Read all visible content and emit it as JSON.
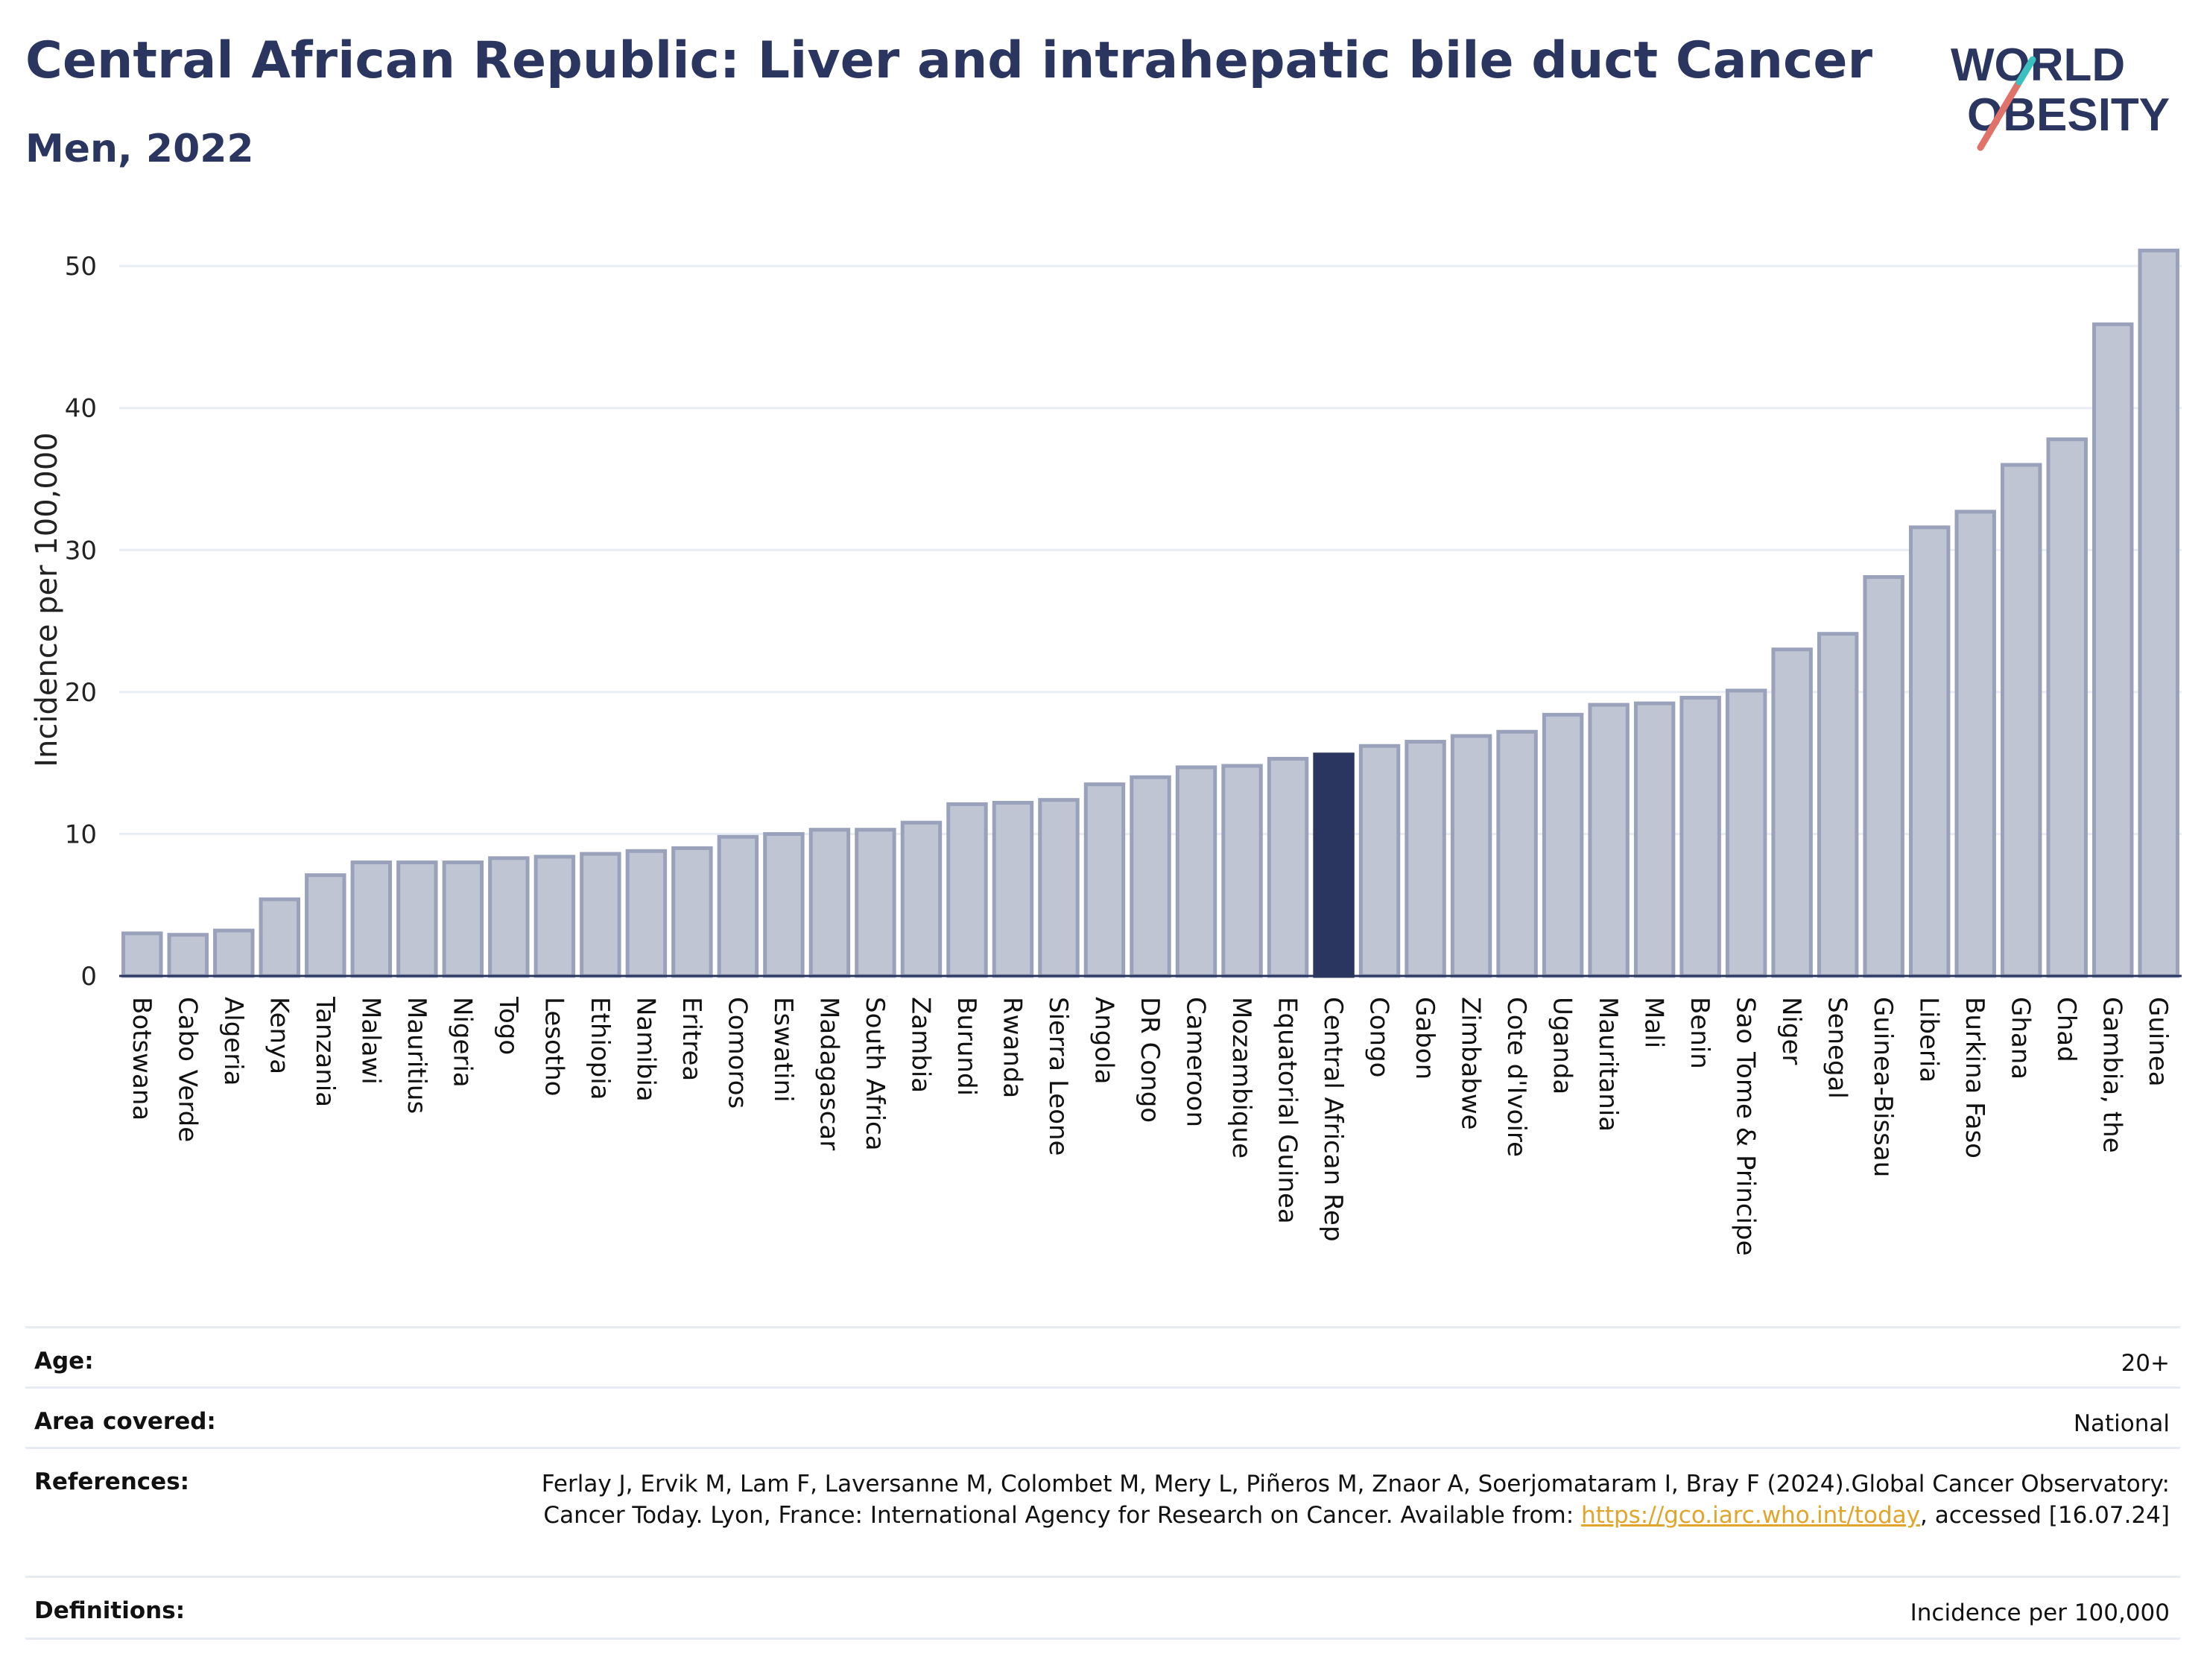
{
  "header": {
    "title": "Central African Republic: Liver and intrahepatic bile duct Cancer",
    "subtitle": "Men, 2022"
  },
  "logo": {
    "line1": "WORLD",
    "line2": "OBESITY",
    "icon": "slash-icon",
    "colors": [
      "#2a3560",
      "#e0726a",
      "#3bbfbf"
    ]
  },
  "chart_data": {
    "type": "bar",
    "ylabel": "Incidence per 100,000",
    "xlabel": "",
    "ylim": [
      0,
      53
    ],
    "yticks": [
      0,
      10,
      20,
      30,
      40,
      50
    ],
    "grid": true,
    "highlight": "Central African Rep",
    "colors": {
      "bar": "#c0c5d3",
      "bar_edge": "#9aa2bb",
      "highlight": "#2a3560"
    },
    "categories": [
      "Botswana",
      "Cabo Verde",
      "Algeria",
      "Kenya",
      "Tanzania",
      "Malawi",
      "Mauritius",
      "Nigeria",
      "Togo",
      "Lesotho",
      "Ethiopia",
      "Namibia",
      "Eritrea",
      "Comoros",
      "Eswatini",
      "Madagascar",
      "South Africa",
      "Zambia",
      "Burundi",
      "Rwanda",
      "Sierra Leone",
      "Angola",
      "DR Congo",
      "Cameroon",
      "Mozambique",
      "Equatorial Guinea",
      "Central African Rep",
      "Congo",
      "Gabon",
      "Zimbabwe",
      "Cote d'Ivoire",
      "Uganda",
      "Mauritania",
      "Mali",
      "Benin",
      "Sao Tome & Principe",
      "Niger",
      "Senegal",
      "Guinea-Bissau",
      "Liberia",
      "Burkina Faso",
      "Ghana",
      "Chad",
      "Gambia, the",
      "Guinea"
    ],
    "values": [
      3.0,
      2.9,
      3.2,
      5.4,
      7.1,
      8.0,
      8.0,
      8.0,
      8.3,
      8.4,
      8.6,
      8.8,
      9.0,
      9.8,
      10.0,
      10.3,
      10.3,
      10.8,
      12.1,
      12.2,
      12.4,
      13.5,
      14.0,
      14.7,
      14.8,
      15.3,
      15.6,
      16.2,
      16.5,
      16.9,
      17.2,
      18.4,
      19.1,
      19.2,
      19.6,
      20.1,
      23.0,
      24.1,
      28.1,
      31.6,
      32.7,
      36.0,
      37.8,
      45.9,
      51.1
    ]
  },
  "meta": {
    "age": {
      "label": "Age:",
      "value": "20+"
    },
    "area": {
      "label": "Area covered:",
      "value": "National"
    },
    "references": {
      "label": "References:",
      "text1": "Ferlay J, Ervik M, Lam F, Laversanne M, Colombet M, Mery L, Piñeros M, Znaor A, Soerjomataram I, Bray F (2024).Global Cancer Observatory: Cancer Today. Lyon, France: International Agency for Research on Cancer. Available from: ",
      "link": "https://gco.iarc.who.int/today",
      "text2": ", accessed [16.07.24]"
    },
    "definitions": {
      "label": "Definitions:",
      "value": "Incidence per 100,000"
    }
  }
}
